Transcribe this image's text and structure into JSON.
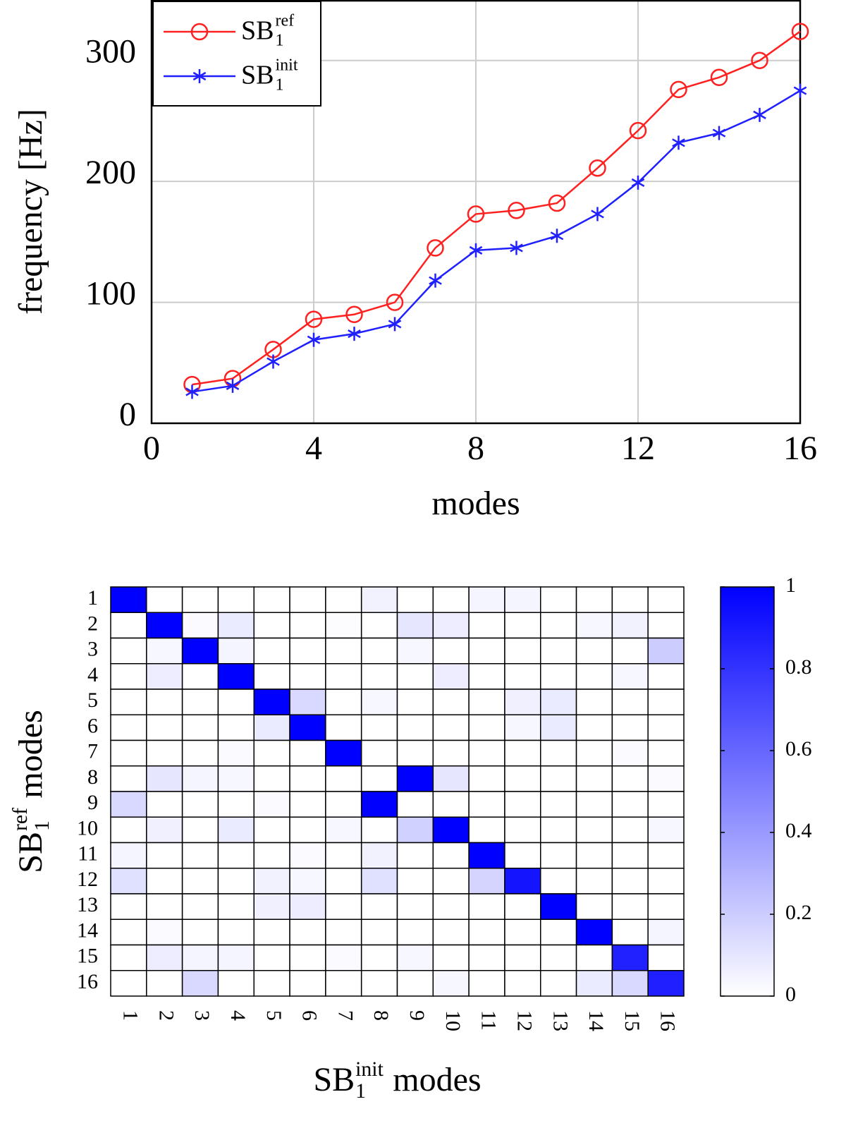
{
  "chart_data": [
    {
      "type": "line",
      "x_label": "modes",
      "y_label": "frequency [Hz]",
      "x": [
        1,
        2,
        3,
        4,
        5,
        6,
        7,
        8,
        9,
        10,
        11,
        12,
        13,
        14,
        15,
        16
      ],
      "xlim": [
        0,
        16
      ],
      "xticks": [
        0,
        4,
        8,
        12,
        16
      ],
      "ylim": [
        0,
        350
      ],
      "yticks": [
        0,
        100,
        200,
        300
      ],
      "grid": true,
      "legend": "upper left",
      "series": [
        {
          "name": "SB",
          "name_sub": "1",
          "name_sup": "ref",
          "color": "#ff2020",
          "marker": "circle",
          "values": [
            32,
            37,
            61,
            86,
            90,
            100,
            145,
            173,
            176,
            182,
            211,
            242,
            276,
            286,
            300,
            324
          ]
        },
        {
          "name": "SB",
          "name_sub": "1",
          "name_sup": "init",
          "color": "#2020ff",
          "marker": "asterisk",
          "values": [
            26,
            31,
            51,
            69,
            74,
            82,
            118,
            143,
            145,
            155,
            173,
            199,
            232,
            240,
            255,
            275
          ]
        }
      ]
    },
    {
      "type": "heatmap",
      "x_label": {
        "main": "SB",
        "sub": "1",
        "sup": "init",
        "rest": "modes"
      },
      "y_label": {
        "main": "SB",
        "sub": "1",
        "sup": "ref",
        "rest": "modes"
      },
      "x_categories": [
        "1",
        "2",
        "3",
        "4",
        "5",
        "6",
        "7",
        "8",
        "9",
        "10",
        "11",
        "12",
        "13",
        "14",
        "15",
        "16"
      ],
      "y_categories": [
        "1",
        "2",
        "3",
        "4",
        "5",
        "6",
        "7",
        "8",
        "9",
        "10",
        "11",
        "12",
        "13",
        "14",
        "15",
        "16"
      ],
      "color": "#0000ff",
      "clim": [
        0,
        1
      ],
      "cticks": [
        0,
        0.2,
        0.4,
        0.6,
        0.8,
        1
      ],
      "values": [
        [
          1,
          0,
          0,
          0,
          0,
          0,
          0,
          0.05,
          0,
          0,
          0.04,
          0.04,
          0,
          0,
          0,
          0
        ],
        [
          0,
          1,
          0.02,
          0.08,
          0,
          0,
          0.01,
          0,
          0.1,
          0.07,
          0,
          0,
          0,
          0.03,
          0.05,
          0
        ],
        [
          0,
          0.03,
          1,
          0.04,
          0,
          0,
          0,
          0,
          0.03,
          0,
          0,
          0,
          0,
          0,
          0,
          0.2
        ],
        [
          0,
          0.07,
          0,
          1,
          0,
          0,
          0,
          0,
          0,
          0.07,
          0,
          0,
          0,
          0,
          0.03,
          0
        ],
        [
          0,
          0,
          0,
          0,
          1,
          0.15,
          0,
          0.03,
          0,
          0,
          0,
          0.06,
          0.08,
          0,
          0,
          0
        ],
        [
          0,
          0,
          0,
          0,
          0.08,
          1,
          0,
          0,
          0,
          0,
          0,
          0.03,
          0.08,
          0,
          0,
          0
        ],
        [
          0,
          0,
          0,
          0.02,
          0,
          0,
          1,
          0,
          0,
          0,
          0,
          0,
          0,
          0,
          0.02,
          0
        ],
        [
          0,
          0.1,
          0.04,
          0.03,
          0,
          0,
          0,
          0,
          1,
          0.1,
          0,
          0,
          0,
          0,
          0,
          0.02
        ],
        [
          0.15,
          0,
          0,
          0,
          0.02,
          0,
          0,
          1,
          0,
          0,
          0,
          0,
          0,
          0,
          0,
          0
        ],
        [
          0,
          0.06,
          0,
          0.08,
          0,
          0,
          0.03,
          0,
          0.18,
          1,
          0,
          0,
          0,
          0,
          0,
          0.03
        ],
        [
          0.04,
          0,
          0,
          0,
          0,
          0.02,
          0,
          0.05,
          0,
          0,
          1,
          0,
          0,
          0,
          0,
          0
        ],
        [
          0.12,
          0,
          0,
          0,
          0.05,
          0.03,
          0,
          0.12,
          0,
          0,
          0.17,
          0.92,
          0,
          0,
          0,
          0
        ],
        [
          0,
          0,
          0,
          0,
          0.06,
          0.07,
          0,
          0,
          0,
          0,
          0,
          0,
          1,
          0,
          0,
          0
        ],
        [
          0,
          0.02,
          0,
          0,
          0,
          0,
          0,
          0,
          0,
          0,
          0,
          0,
          0,
          1,
          0,
          0.04
        ],
        [
          0,
          0.07,
          0.04,
          0.04,
          0,
          0,
          0.02,
          0,
          0.03,
          0,
          0,
          0,
          0,
          0,
          0.87,
          0
        ],
        [
          0,
          0,
          0.15,
          0,
          0,
          0,
          0,
          0,
          0,
          0.03,
          0,
          0,
          0,
          0.08,
          0.15,
          0.88
        ]
      ]
    }
  ]
}
